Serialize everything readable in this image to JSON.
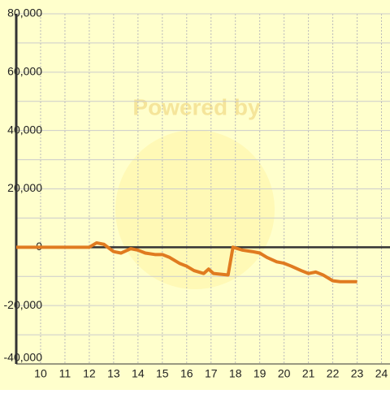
{
  "chart_data": {
    "type": "line",
    "watermark": "Powered by",
    "x": [
      9,
      12,
      12.3,
      12.6,
      13,
      13.3,
      13.7,
      14,
      14.3,
      14.7,
      15,
      15.3,
      15.7,
      16,
      16.3,
      16.7,
      16.9,
      17.1,
      17.7,
      17.9,
      18.3,
      18.7,
      19,
      19.3,
      19.7,
      20,
      20.3,
      20.7,
      21,
      21.3,
      21.6,
      22,
      22.3,
      23
    ],
    "series": [
      {
        "color": "#e07b20",
        "values": [
          0,
          0,
          1500,
          1000,
          -1500,
          -2000,
          -500,
          -1000,
          -2000,
          -2500,
          -2500,
          -3500,
          -5500,
          -6500,
          -8000,
          -9000,
          -7500,
          -9000,
          -9500,
          0,
          -1000,
          -1500,
          -2000,
          -3500,
          -5000,
          -5500,
          -6500,
          -8000,
          -9000,
          -8500,
          -9500,
          -11500,
          -11800,
          -11800
        ]
      }
    ],
    "xlim": [
      9,
      24.35
    ],
    "xticks": [
      10,
      11,
      12,
      13,
      14,
      15,
      16,
      17,
      18,
      19,
      20,
      21,
      22,
      23,
      24
    ],
    "ylim": [
      -40000,
      80000
    ],
    "yticks": [
      {
        "value": -40000,
        "label": "-40,000"
      },
      {
        "value": -20000,
        "label": "-20,000"
      },
      0,
      {
        "value": 20000,
        "label": "20,000"
      },
      {
        "value": 40000,
        "label": "40,000"
      },
      {
        "value": 60000,
        "label": "60,000"
      },
      {
        "value": 80000,
        "label": "80,000"
      }
    ],
    "yminorticks": [
      -30000,
      -10000,
      10000,
      30000,
      50000,
      70000
    ],
    "grid": true,
    "background": "#ffffcc"
  }
}
